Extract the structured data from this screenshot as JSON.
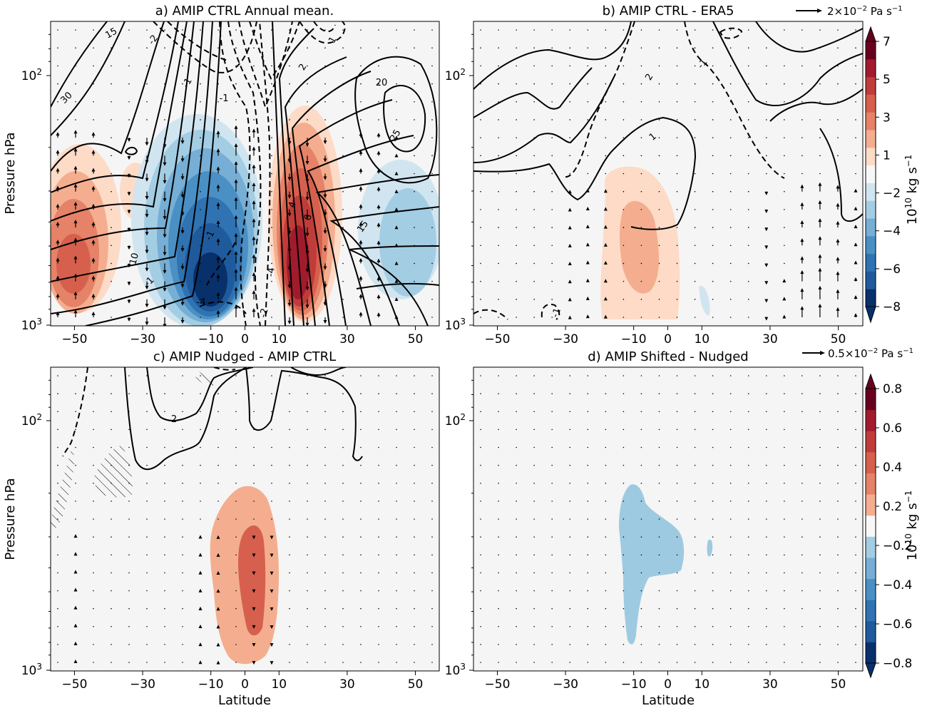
{
  "chart_data": [
    {
      "type": "heatmap",
      "title": "a) AMIP CTRL Annual mean.",
      "xlabel": "",
      "ylabel": "Pressure hPa",
      "x_ticks": [
        "−50",
        "−30",
        "−10",
        "0",
        "10",
        "30",
        "50"
      ],
      "x_tick_values": [
        -50,
        -30,
        -10,
        0,
        10,
        30,
        50
      ],
      "y_ticks": [
        "10",
        "10"
      ],
      "y_tick_exponents": [
        "2",
        "3"
      ],
      "y_tick_values": [
        100,
        1000
      ],
      "xlim": [
        -57,
        57
      ],
      "ylim_hpa": [
        1050,
        62
      ],
      "y_scale": "log, reversed",
      "contour_labels": [
        "30",
        "15",
        "-2",
        "-1",
        "2",
        "20",
        "25",
        "-1",
        "1",
        "10",
        "4",
        "6",
        "-4",
        "15",
        "-2",
        "-1",
        "-4",
        "-1"
      ],
      "shading": "stream function (10^10 kg s^-1)",
      "filled_cells": [
        {
          "lat": -49,
          "p": 500,
          "value": 2.5
        },
        {
          "lat": -47,
          "p": 620,
          "value": 4.5
        },
        {
          "lat": -35,
          "p": 450,
          "value": 1.2
        },
        {
          "lat": -13,
          "p": 600,
          "value": -7.0
        },
        {
          "lat": 13,
          "p": 580,
          "value": 7.2
        },
        {
          "lat": 42,
          "p": 380,
          "value": -1.6
        }
      ]
    },
    {
      "type": "heatmap",
      "title": "b) AMIP CTRL - ERA5",
      "xlabel": "",
      "ylabel": "",
      "x_ticks": [
        "−50",
        "−30",
        "−10",
        "0",
        "10",
        "30",
        "50"
      ],
      "x_tick_values": [
        -50,
        -30,
        -10,
        0,
        10,
        30,
        50
      ],
      "y_ticks": [
        "10",
        "10"
      ],
      "y_tick_exponents": [
        "2",
        "3"
      ],
      "y_tick_values": [
        100,
        1000
      ],
      "xlim": [
        -57,
        57
      ],
      "ylim_hpa": [
        1050,
        62
      ],
      "y_scale": "log, reversed",
      "contour_labels": [
        "2",
        "-1",
        "1",
        "-1"
      ],
      "filled_cells": [
        {
          "lat": -9,
          "p": 500,
          "value": 1.5
        },
        {
          "lat": -8,
          "p": 530,
          "value": 2.4
        },
        {
          "lat": 10,
          "p": 880,
          "value": -1.0
        }
      ]
    },
    {
      "type": "heatmap",
      "title": "c) AMIP Nudged - AMIP CTRL",
      "xlabel": "Latitude",
      "ylabel": "Pressure hPa",
      "x_ticks": [
        "−50",
        "−30",
        "−10",
        "0",
        "10",
        "30",
        "50"
      ],
      "x_tick_values": [
        -50,
        -30,
        -10,
        0,
        10,
        30,
        50
      ],
      "y_ticks": [
        "10",
        "10"
      ],
      "y_tick_exponents": [
        "2",
        "3"
      ],
      "y_tick_values": [
        100,
        1000
      ],
      "xlim": [
        -57,
        57
      ],
      "ylim_hpa": [
        1050,
        62
      ],
      "y_scale": "log, reversed",
      "contour_labels": [
        "2"
      ],
      "filled_cells": [
        {
          "lat": 0,
          "p": 480,
          "value": 0.3
        },
        {
          "lat": 2,
          "p": 470,
          "value": 0.45
        }
      ]
    },
    {
      "type": "heatmap",
      "title": "d) AMIP Shifted - Nudged",
      "xlabel": "Latitude",
      "ylabel": "",
      "x_ticks": [
        "−50",
        "−30",
        "−10",
        "0",
        "10",
        "30",
        "50"
      ],
      "x_tick_values": [
        -50,
        -30,
        -10,
        0,
        10,
        30,
        50
      ],
      "y_ticks": [
        "10",
        "10"
      ],
      "y_tick_exponents": [
        "2",
        "3"
      ],
      "y_tick_values": [
        100,
        1000
      ],
      "xlim": [
        -57,
        57
      ],
      "ylim_hpa": [
        1050,
        62
      ],
      "y_scale": "log, reversed",
      "contour_labels": [],
      "filled_cells": [
        {
          "lat": -8,
          "p": 400,
          "value": -0.3
        },
        {
          "lat": 12,
          "p": 330,
          "value": -0.3
        }
      ]
    }
  ],
  "colorbars": [
    {
      "ticks": [
        "−8",
        "−6",
        "−4",
        "−2",
        "1",
        "3",
        "5",
        "7"
      ],
      "label": "10",
      "label_exponent": "10",
      "label_units": " kg s",
      "label_units_exponent": "−1",
      "levels": [
        -8,
        -7,
        -6,
        -5,
        -4,
        -3,
        -2,
        -1,
        1,
        2,
        3,
        4,
        5,
        6,
        7,
        8
      ],
      "colors": [
        "#08306b",
        "#1f5a9c",
        "#2f73b3",
        "#4a90c4",
        "#76aed5",
        "#a3cde3",
        "#d1e5f0",
        "#f7f7f7",
        "#fddbc7",
        "#f4ae8f",
        "#e58267",
        "#d6604d",
        "#c03c3a",
        "#a11b2d",
        "#67001f"
      ]
    },
    {
      "ticks": [
        "−0.8",
        "−0.6",
        "−0.4",
        "−0.2",
        "0.2",
        "0.4",
        "0.6",
        "0.8"
      ],
      "label": "10",
      "label_exponent": "10",
      "label_units": " kg s",
      "label_units_exponent": "−1",
      "levels": [
        -0.8,
        -0.7,
        -0.6,
        -0.5,
        -0.4,
        -0.3,
        -0.2,
        0.2,
        0.3,
        0.4,
        0.5,
        0.6,
        0.7,
        0.8
      ],
      "colors": [
        "#08306b",
        "#1f5a9c",
        "#2f73b3",
        "#4a90c4",
        "#76aed5",
        "#a3cde3",
        "#f7f7f7",
        "#f4ae8f",
        "#e58267",
        "#d6604d",
        "#c03c3a",
        "#a11b2d",
        "#67001f"
      ]
    }
  ],
  "quiver_keys": [
    {
      "label": "2×10",
      "exponent": "−2",
      "units": " Pa s",
      "units_exponent": "−1"
    },
    {
      "label": "0.5×10",
      "exponent": "−2",
      "units": " Pa s",
      "units_exponent": "−1"
    }
  ],
  "colors": {
    "background": "#f5f5f5",
    "contour": "#000000",
    "red_dark": "#67001f",
    "blue_dark": "#08306b"
  }
}
